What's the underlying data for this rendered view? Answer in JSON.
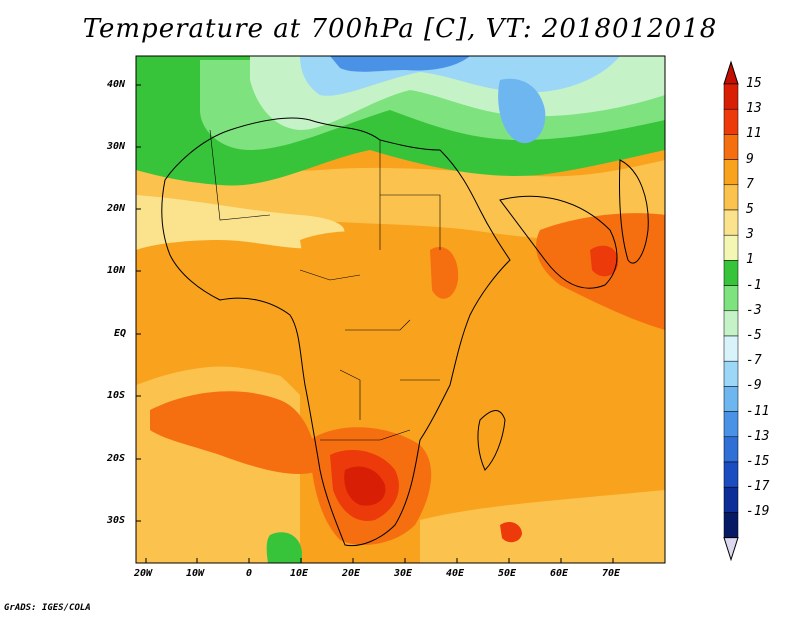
{
  "title": "Temperature at 700hPa [C], VT: 2018012018",
  "credit": "GrADS: IGES/COLA",
  "lat_ticks": [
    "40N",
    "30N",
    "20N",
    "10N",
    "EQ",
    "10S",
    "20S",
    "30S"
  ],
  "lon_ticks": [
    "20W",
    "10W",
    "0",
    "10E",
    "20E",
    "30E",
    "40E",
    "50E",
    "60E",
    "70E"
  ],
  "colorbar": {
    "labels": [
      "15",
      "13",
      "11",
      "9",
      "7",
      "5",
      "3",
      "1",
      "-1",
      "-3",
      "-5",
      "-7",
      "-9",
      "-11",
      "-13",
      "-15",
      "-17",
      "-19"
    ],
    "colors": [
      "#d81e05",
      "#ec3a0a",
      "#f56f10",
      "#f9a21d",
      "#fbc24e",
      "#fbe28c",
      "#f4f7b4",
      "#38c43a",
      "#7ee37e",
      "#c6f2c8",
      "#d8f4fa",
      "#9cd7f7",
      "#6db6f0",
      "#4a92e6",
      "#2f6fd6",
      "#1b4cc0",
      "#0d2e96",
      "#061a66"
    ],
    "top_arrow_color": "#c40e02",
    "bottom_arrow_color": "#dcd8f0"
  }
}
